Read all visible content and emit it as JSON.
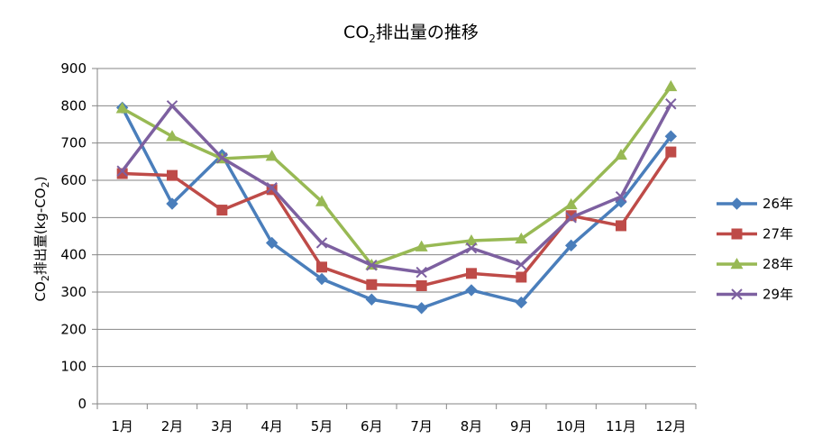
{
  "chart_data": {
    "type": "line",
    "title": "CO",
    "title_sub": "2",
    "title_rest": "排出量の推移",
    "ylabel": "CO",
    "ylabel_sub1": "2",
    "ylabel_mid": "排出量(kg-CO",
    "ylabel_sub2": "2",
    "ylabel_end": ")",
    "xlabel": "",
    "categories": [
      "1月",
      "2月",
      "3月",
      "4月",
      "5月",
      "6月",
      "7月",
      "8月",
      "9月",
      "10月",
      "11月",
      "12月"
    ],
    "ylim": [
      0,
      900
    ],
    "yticks": [
      "0",
      "100",
      "200",
      "300",
      "400",
      "500",
      "600",
      "700",
      "800",
      "900"
    ],
    "grid": true,
    "legend_position": "right",
    "series": [
      {
        "name": "26年",
        "color": "#4a7ebb",
        "marker": "diamond",
        "values": [
          795,
          537,
          668,
          432,
          335,
          280,
          257,
          305,
          272,
          425,
          542,
          718
        ]
      },
      {
        "name": "27年",
        "color": "#be4b48",
        "marker": "square",
        "values": [
          618,
          613,
          520,
          575,
          367,
          320,
          317,
          350,
          340,
          505,
          478,
          676
        ]
      },
      {
        "name": "28年",
        "color": "#98b954",
        "marker": "triangle",
        "values": [
          793,
          718,
          658,
          665,
          543,
          373,
          422,
          438,
          443,
          535,
          668,
          852
        ]
      },
      {
        "name": "29年",
        "color": "#7d60a0",
        "marker": "x",
        "values": [
          625,
          800,
          660,
          580,
          432,
          372,
          353,
          418,
          373,
          500,
          556,
          805
        ]
      }
    ]
  }
}
